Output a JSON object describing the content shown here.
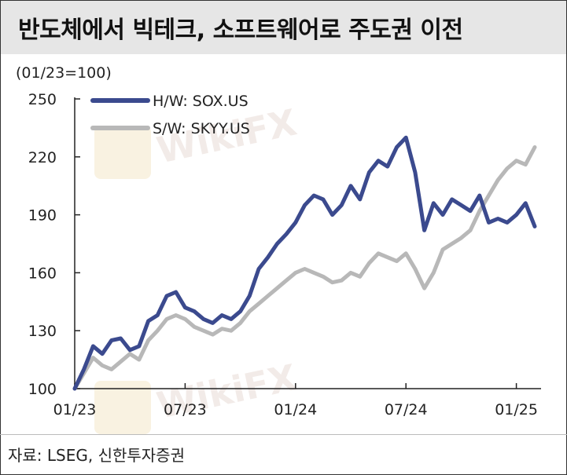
{
  "title": "반도체에서 빅테크, 소프트웨어로 주도권 이전",
  "unit_label": "(01/23=100)",
  "source": "자료: LSEG, 신한투자증권",
  "watermark": "WikiFX",
  "chart_data": {
    "type": "line",
    "ylim": [
      100,
      250
    ],
    "yticks": [
      "100",
      "130",
      "160",
      "190",
      "220",
      "250"
    ],
    "ytick_values": [
      100,
      130,
      160,
      190,
      220,
      250
    ],
    "xticks": [
      "01/23",
      "07/23",
      "01/24",
      "07/24",
      "01/25"
    ],
    "xtick_positions": [
      0,
      6,
      12,
      18,
      24
    ],
    "legend_position": "top-left",
    "grid": false,
    "series": [
      {
        "name": "H/W: SOX.US",
        "color": "#3b4a8e",
        "x": [
          0,
          0.5,
          1,
          1.5,
          2,
          2.5,
          3,
          3.5,
          4,
          4.5,
          5,
          5.5,
          6,
          6.5,
          7,
          7.5,
          8,
          8.5,
          9,
          9.5,
          10,
          10.5,
          11,
          11.5,
          12,
          12.5,
          13,
          13.5,
          14,
          14.5,
          15,
          15.5,
          16,
          16.5,
          17,
          17.5,
          18,
          18.5,
          19,
          19.5,
          20,
          20.5,
          21,
          21.5,
          22,
          22.5,
          23,
          23.5,
          24,
          24.5,
          25
        ],
        "values": [
          100,
          110,
          122,
          118,
          125,
          126,
          120,
          122,
          135,
          138,
          148,
          150,
          142,
          140,
          136,
          134,
          138,
          136,
          140,
          148,
          162,
          168,
          175,
          180,
          186,
          195,
          200,
          198,
          190,
          195,
          205,
          198,
          212,
          218,
          215,
          225,
          230,
          212,
          182,
          196,
          190,
          198,
          195,
          192,
          200,
          186,
          188,
          186,
          190,
          196,
          184
        ]
      },
      {
        "name": "S/W: SKYY.US",
        "color": "#b8b8b8",
        "x": [
          0,
          0.5,
          1,
          1.5,
          2,
          2.5,
          3,
          3.5,
          4,
          4.5,
          5,
          5.5,
          6,
          6.5,
          7,
          7.5,
          8,
          8.5,
          9,
          9.5,
          10,
          10.5,
          11,
          11.5,
          12,
          12.5,
          13,
          13.5,
          14,
          14.5,
          15,
          15.5,
          16,
          16.5,
          17,
          17.5,
          18,
          18.5,
          19,
          19.5,
          20,
          20.5,
          21,
          21.5,
          22,
          22.5,
          23,
          23.5,
          24,
          24.5,
          25
        ],
        "values": [
          100,
          108,
          116,
          112,
          110,
          114,
          118,
          115,
          125,
          130,
          136,
          138,
          136,
          132,
          130,
          128,
          131,
          130,
          134,
          140,
          144,
          148,
          152,
          156,
          160,
          162,
          160,
          158,
          155,
          156,
          160,
          158,
          165,
          170,
          168,
          166,
          170,
          162,
          152,
          160,
          172,
          175,
          178,
          182,
          192,
          200,
          208,
          214,
          218,
          216,
          225
        ]
      }
    ]
  }
}
